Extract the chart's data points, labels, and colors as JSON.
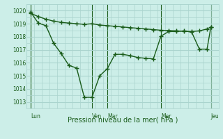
{
  "xlabel": "Pression niveau de la mer( hPa )",
  "bg_color": "#cceee8",
  "grid_color": "#aad4ce",
  "line_color": "#1a5c1a",
  "ylim": [
    1012.5,
    1020.5
  ],
  "yticks": [
    1013,
    1014,
    1015,
    1016,
    1017,
    1018,
    1019,
    1020
  ],
  "day_labels": [
    "Lun",
    "Ven",
    "Mar",
    "Mer",
    "Jeu"
  ],
  "day_positions": [
    0.5,
    8.5,
    10.5,
    17.5,
    24.0
  ],
  "vline_positions": [
    0.5,
    8.5,
    10.5,
    17.5,
    24.0
  ],
  "xlim": [
    0,
    25
  ],
  "line1_x": [
    0.5,
    1.5,
    2.5,
    3.5,
    4.5,
    5.5,
    6.5,
    7.5,
    8.5,
    9.5,
    10.5,
    11.5,
    12.5,
    13.5,
    14.5,
    15.5,
    16.5,
    17.5,
    18.5,
    19.5,
    20.5,
    21.5,
    22.5,
    23.5,
    24.0
  ],
  "line1_y": [
    1019.8,
    1019.55,
    1019.35,
    1019.2,
    1019.1,
    1019.05,
    1019.0,
    1018.95,
    1019.0,
    1018.9,
    1018.85,
    1018.8,
    1018.75,
    1018.7,
    1018.65,
    1018.6,
    1018.55,
    1018.5,
    1018.48,
    1018.45,
    1018.42,
    1018.4,
    1018.45,
    1018.6,
    1018.75
  ],
  "line2_x": [
    0.5,
    1.5,
    2.5,
    3.5,
    4.5,
    5.5,
    6.5,
    7.5,
    8.5,
    9.5,
    10.5,
    11.5,
    12.5,
    13.5,
    14.5,
    15.5,
    16.5,
    17.5,
    18.5,
    19.5,
    20.5,
    21.5,
    22.5,
    23.5,
    24.0
  ],
  "line2_y": [
    1019.9,
    1019.05,
    1018.85,
    1017.5,
    1016.7,
    1015.8,
    1015.6,
    1013.35,
    1013.35,
    1015.0,
    1015.55,
    1016.65,
    1016.65,
    1016.55,
    1016.4,
    1016.35,
    1016.3,
    1018.05,
    1018.4,
    1018.4,
    1018.45,
    1018.35,
    1017.05,
    1017.05,
    1018.75
  ],
  "marker": "+",
  "markersize": 4.0,
  "linewidth": 1.0
}
